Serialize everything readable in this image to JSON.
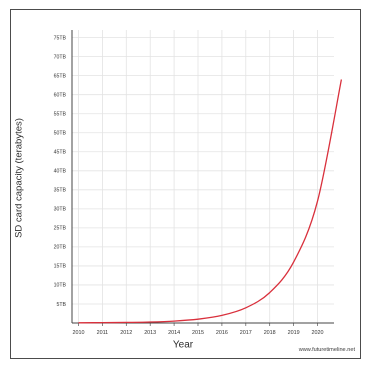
{
  "chart_data": {
    "type": "line",
    "title": "",
    "xlabel": "Year",
    "ylabel": "SD card capacity (terabytes)",
    "x": [
      "2010",
      "2011",
      "2012",
      "2013",
      "2014",
      "2015",
      "2016",
      "2017",
      "2018",
      "2019",
      "2020"
    ],
    "y_tick_labels": [
      "5TB",
      "10TB",
      "15TB",
      "20TB",
      "25TB",
      "30TB",
      "35TB",
      "40TB",
      "45TB",
      "50TB",
      "55TB",
      "60TB",
      "65TB",
      "70TB",
      "75TB"
    ],
    "y_tick_values": [
      5,
      10,
      15,
      20,
      25,
      30,
      35,
      40,
      45,
      50,
      55,
      60,
      65,
      70,
      75
    ],
    "ylim": [
      0,
      77
    ],
    "series": [
      {
        "values": [
          0.06,
          0.1,
          0.15,
          0.25,
          0.5,
          1.0,
          2.0,
          4.0,
          8.0,
          16.0,
          32.0,
          64.0
        ],
        "x": [
          2011,
          2012,
          2013,
          2014,
          2015,
          2016,
          2017,
          2018,
          2019,
          2020,
          2021,
          2022
        ],
        "color": "#d9303c"
      }
    ],
    "grid": true,
    "legend": "none"
  },
  "credit": "www.futuretimeline.net"
}
